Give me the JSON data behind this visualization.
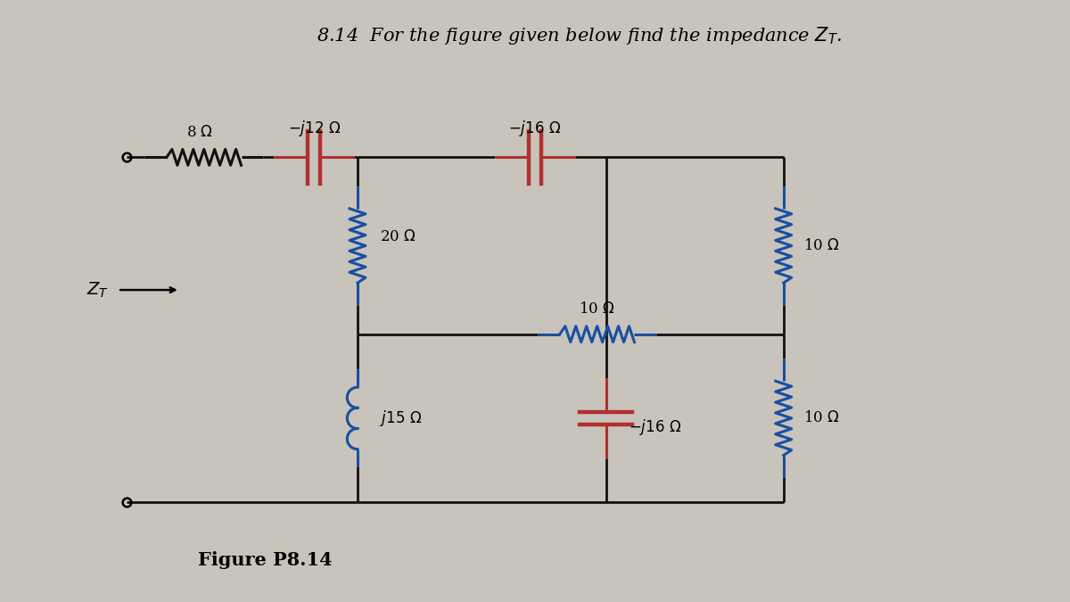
{
  "title": "8.14  For the figure given below find the impedance $Z_T$.",
  "figure_label": "Figure P8.14",
  "bg_color": "#c8c4bc",
  "line_color": "#111111",
  "blue_color": "#1a4fa0",
  "red_color": "#b03030",
  "black_color": "#111111",
  "font_size": 15,
  "label_font_size": 12,
  "lw_wire": 2.0,
  "lw_comp": 2.2
}
